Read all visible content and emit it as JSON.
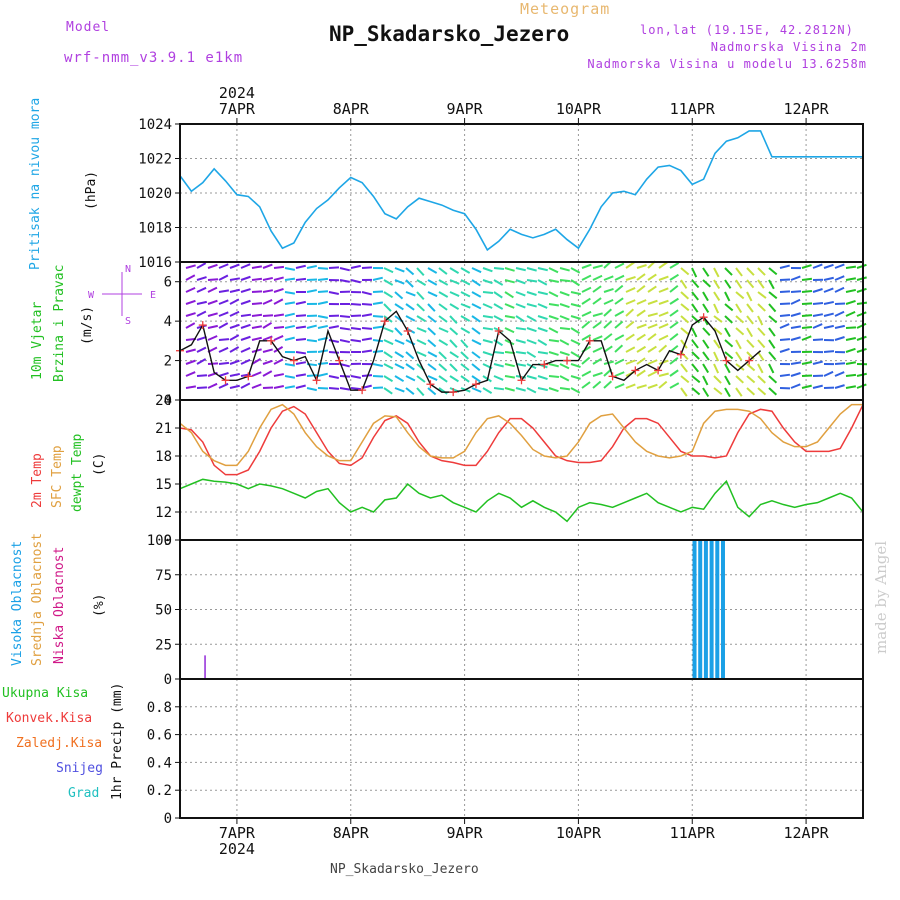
{
  "header": {
    "model_label": "Model",
    "model_name": "wrf-nmm_v3.9.1 e1km",
    "kind": "Meteogram",
    "station": "NP_Skadarsko_Jezero",
    "coords": "lon,lat (19.15E, 42.2812N)",
    "elevation": "Nadmorska Visina 2m",
    "model_elevation": "Nadmorska Visina u modelu 13.6258m",
    "footer_station": "NP_Skadarsko_Jezero",
    "credit": "made by Angel",
    "year_top": "2024",
    "year_bottom": "2024"
  },
  "colors": {
    "pressure": "#1ea6e6",
    "temp2m": "#ee3b3b",
    "sfc": "#e0a040",
    "dewpt": "#22c022",
    "wind_speed": "#111111",
    "wind_dir": "#ee3b3b",
    "high_cloud": "#1aa0e6",
    "mid_cloud": "#e0a040",
    "low_cloud": "#d01888",
    "compass": "#b040e0",
    "model_text": "#b040e0",
    "title_meteogram": "#e8b870",
    "credit": "#cccccc"
  },
  "labels": {
    "pressure": [
      "Pritisak na nivou mora"
    ],
    "pressure_unit": "(hPa)",
    "wind": [
      "10m Vjetar",
      "Brzina i Pravac"
    ],
    "wind_unit": "(m/s)",
    "compass_icon": "compass-rose-icon",
    "compass_n": "N",
    "compass_s": "S",
    "compass_e": "E",
    "compass_w": "W",
    "temp": [
      "2m Temp",
      "SFC Temp",
      "dewpt Temp"
    ],
    "temp_unit": "(C)",
    "cloud": [
      "Visoka Oblacnost",
      "Srednja Oblacnost",
      "Niska Oblacnost"
    ],
    "cloud_unit": "(%)",
    "precip_legend": [
      "Ukupna Kisa",
      "Konvek.Kisa",
      "Zaledj.Kisa",
      "Snijeg",
      "Grad"
    ],
    "precip_legend_colors": [
      "#22c022",
      "#ee3b3b",
      "#f07020",
      "#5050e0",
      "#20c0c0"
    ],
    "precip_axis": "1hr Precip (mm)"
  },
  "chart_data": [
    {
      "type": "line",
      "panel": "pressure",
      "x_labels": [
        "7APR",
        "8APR",
        "9APR",
        "10APR",
        "11APR",
        "12APR"
      ],
      "x": [
        6.5,
        6.6,
        6.7,
        6.8,
        6.9,
        7.0,
        7.1,
        7.2,
        7.3,
        7.4,
        7.5,
        7.6,
        7.7,
        7.8,
        7.9,
        8.0,
        8.1,
        8.2,
        8.3,
        8.4,
        8.5,
        8.6,
        8.7,
        8.8,
        8.9,
        9.0,
        9.1,
        9.2,
        9.3,
        9.4,
        9.5,
        9.6,
        9.7,
        9.8,
        9.9,
        10.0,
        10.1,
        10.2,
        10.3,
        10.4,
        10.5,
        10.6,
        10.7,
        10.8,
        10.9,
        11.0,
        11.1,
        11.2,
        11.3,
        11.4,
        11.5,
        11.6,
        11.7,
        11.8,
        11.9,
        12.0,
        12.1,
        12.2,
        12.3,
        12.4,
        12.5
      ],
      "series": [
        {
          "name": "Pritisak na nivou mora",
          "values": [
            1021.0,
            1020.1,
            1020.6,
            1021.4,
            1020.7,
            1019.9,
            1019.8,
            1019.2,
            1017.8,
            1016.8,
            1017.1,
            1018.3,
            1019.1,
            1019.6,
            1020.3,
            1020.9,
            1020.6,
            1019.8,
            1018.8,
            1018.5,
            1019.2,
            1019.7,
            1019.5,
            1019.3,
            1019.0,
            1018.8,
            1017.9,
            1016.7,
            1017.2,
            1017.9,
            1017.6,
            1017.4,
            1017.6,
            1017.9,
            1017.3,
            1016.8,
            1017.9,
            1019.2,
            1020.0,
            1020.1,
            1019.9,
            1020.8,
            1021.5,
            1021.6,
            1021.3,
            1020.5,
            1020.8,
            1022.3,
            1023.0,
            1023.2,
            1023.6,
            1023.6,
            1022.1,
            1022.1,
            1022.1,
            1022.1,
            1022.1,
            1022.1,
            1022.1,
            1022.1,
            1022.1
          ]
        }
      ],
      "ylim": [
        1016,
        1024
      ],
      "yticks": [
        1016,
        1018,
        1020,
        1022,
        1024
      ]
    },
    {
      "type": "line",
      "panel": "wind",
      "x": [
        6.5,
        6.6,
        6.7,
        6.8,
        6.9,
        7.0,
        7.1,
        7.2,
        7.3,
        7.4,
        7.5,
        7.6,
        7.7,
        7.8,
        7.9,
        8.0,
        8.1,
        8.2,
        8.3,
        8.4,
        8.5,
        8.6,
        8.7,
        8.8,
        8.9,
        9.0,
        9.1,
        9.2,
        9.3,
        9.4,
        9.5,
        9.6,
        9.7,
        9.8,
        9.9,
        10.0,
        10.1,
        10.2,
        10.3,
        10.4,
        10.5,
        10.6,
        10.7,
        10.8,
        10.9,
        11.0,
        11.1,
        11.2,
        11.3,
        11.4,
        11.5,
        11.6
      ],
      "series": [
        {
          "name": "speed",
          "values": [
            2.5,
            2.8,
            3.8,
            1.4,
            1.0,
            1.0,
            1.2,
            3.0,
            3.0,
            2.2,
            2.0,
            2.2,
            1.0,
            3.5,
            2.0,
            0.5,
            0.5,
            2.0,
            4.0,
            4.5,
            3.5,
            2.0,
            0.8,
            0.4,
            0.4,
            0.5,
            0.8,
            1.0,
            3.5,
            3.0,
            1.0,
            1.8,
            1.8,
            2.0,
            2.0,
            2.0,
            3.0,
            3.0,
            1.2,
            1.0,
            1.5,
            1.8,
            1.5,
            2.5,
            2.3,
            3.8,
            4.2,
            3.5,
            2.0,
            1.5,
            2.0,
            2.5
          ]
        }
      ],
      "ylim": [
        0,
        7
      ],
      "yticks": [
        0,
        2,
        4,
        6
      ]
    },
    {
      "type": "line",
      "panel": "temperature",
      "x": [
        6.5,
        6.6,
        6.7,
        6.8,
        6.9,
        7.0,
        7.1,
        7.2,
        7.3,
        7.4,
        7.5,
        7.6,
        7.7,
        7.8,
        7.9,
        8.0,
        8.1,
        8.2,
        8.3,
        8.4,
        8.5,
        8.6,
        8.7,
        8.8,
        8.9,
        9.0,
        9.1,
        9.2,
        9.3,
        9.4,
        9.5,
        9.6,
        9.7,
        9.8,
        9.9,
        10.0,
        10.1,
        10.2,
        10.3,
        10.4,
        10.5,
        10.6,
        10.7,
        10.8,
        10.9,
        11.0,
        11.1,
        11.2,
        11.3,
        11.4,
        11.5,
        11.6,
        11.7,
        11.8,
        11.9,
        12.0,
        12.1,
        12.2,
        12.3,
        12.4,
        12.5
      ],
      "series": [
        {
          "name": "2m Temp",
          "values": [
            21,
            20.8,
            19.5,
            17,
            16,
            16,
            16.5,
            18.5,
            21,
            22.8,
            23.3,
            22.5,
            20.5,
            18.5,
            17.2,
            17,
            17.8,
            20,
            21.8,
            22.3,
            21.5,
            19.5,
            18,
            17.5,
            17.3,
            17,
            17,
            18.5,
            20.5,
            22,
            22,
            21,
            19.5,
            18,
            17.5,
            17.3,
            17.3,
            17.5,
            19,
            21,
            22,
            22,
            21.5,
            20,
            18.5,
            18,
            18,
            17.8,
            18,
            20.5,
            22.5,
            23,
            22.8,
            21,
            19.5,
            18.5,
            18.5,
            18.5,
            18.8,
            21,
            23.5
          ]
        },
        {
          "name": "SFC Temp",
          "values": [
            21.5,
            20.5,
            18.5,
            17.5,
            17,
            17,
            18.5,
            21,
            23,
            23.5,
            22.5,
            20.5,
            19,
            18,
            17.5,
            17.5,
            19.5,
            21.5,
            22.3,
            22.2,
            20.5,
            19,
            18,
            17.8,
            17.8,
            18.5,
            20.5,
            22,
            22.3,
            21.5,
            20.2,
            18.7,
            18,
            17.8,
            18,
            19.5,
            21.5,
            22.3,
            22.5,
            21,
            19.5,
            18.5,
            18,
            17.8,
            18,
            18.5,
            21.5,
            22.8,
            23,
            23,
            22.8,
            22,
            20.5,
            19.5,
            19,
            19,
            19.5,
            21,
            22.5,
            23.5,
            23.5
          ]
        },
        {
          "name": "dewpt Temp",
          "values": [
            14.5,
            15,
            15.5,
            15.3,
            15.2,
            15,
            14.5,
            15,
            14.8,
            14.5,
            14,
            13.5,
            14.2,
            14.5,
            13,
            12,
            12.5,
            12,
            13.3,
            13.5,
            15,
            14,
            13.5,
            13.8,
            13,
            12.5,
            12,
            13.2,
            14,
            13.5,
            12.5,
            13.2,
            12.5,
            12,
            11,
            12.5,
            13,
            12.8,
            12.5,
            13,
            13.5,
            14,
            13,
            12.5,
            12,
            12.5,
            12.3,
            14,
            15.3,
            12.5,
            11.5,
            12.8,
            13.2,
            12.8,
            12.5,
            12.8,
            13,
            13.5,
            14,
            13.5,
            12
          ]
        }
      ],
      "ylim": [
        9,
        24
      ],
      "yticks": [
        9,
        12,
        15,
        18,
        21,
        24
      ]
    },
    {
      "type": "bar",
      "panel": "cloud",
      "series": [
        {
          "name": "Visoka Oblacnost",
          "x": [
            11.02,
            11.07,
            11.12,
            11.17,
            11.22,
            11.27
          ],
          "values": [
            100,
            100,
            100,
            100,
            100,
            100
          ]
        },
        {
          "name": "Niska Oblacnost",
          "x": [
            6.72
          ],
          "values": [
            17
          ]
        }
      ],
      "ylim": [
        0,
        100
      ],
      "yticks": [
        0,
        25,
        50,
        75,
        100
      ]
    },
    {
      "type": "bar",
      "panel": "precipitation",
      "series": [],
      "ylim": [
        0,
        1
      ],
      "yticks": [
        0,
        0.2,
        0.4,
        0.6,
        0.8
      ]
    }
  ]
}
